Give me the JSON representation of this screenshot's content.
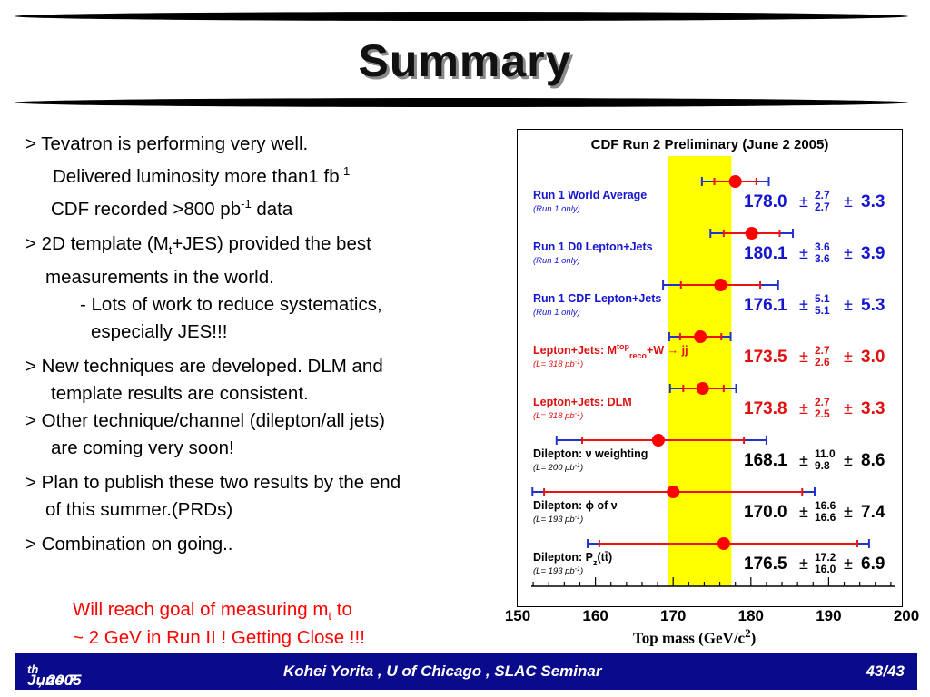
{
  "slide": {
    "title": "Summary",
    "bullets": {
      "b1": "> Tevatron is performing very well.",
      "b1a_pre": "Delivered luminosity more than1 fb",
      "b1a_sup": "-1",
      "b1b_pre": "CDF recorded >800 pb",
      "b1b_sup": "-1",
      "b1b_post": " data",
      "b2_pre": "> 2D template (M",
      "b2_sub": "t",
      "b2_post": "+JES) provided the best",
      "b2a": "measurements in the world.",
      "b2b": "- Lots of work to reduce systematics,",
      "b2c": "especially JES!!!",
      "b3": "> New techniques are developed. DLM and",
      "b3a": "template results are consistent.",
      "b4": "> Other technique/channel (dilepton/all jets)",
      "b4a": "are coming very soon!",
      "b5": "> Plan to publish these two results by the end",
      "b5a": "of this summer.(PRDs)",
      "b6": "> Combination on going.."
    },
    "goal": {
      "line1_pre": "Will reach goal of measuring m",
      "line1_sub": "t",
      "line1_post": " to",
      "line2": "~ 2 GeV in Run II ! Getting Close !!!"
    },
    "footer": {
      "date_pre": "June 7",
      "date_sup": "th",
      "date_post": " , 2005",
      "center": "Kohei Yorita , U of Chicago , SLAC Seminar",
      "page": "43/43"
    }
  },
  "chart_data": {
    "type": "scatter",
    "title": "CDF Run 2 Preliminary (June 2 2005)",
    "xlabel_pre": "Top mass (GeV/c",
    "xlabel_sup": "2",
    "xlabel_post": ")",
    "xlim": [
      150,
      200
    ],
    "xticks": [
      "150",
      "160",
      "170",
      "180",
      "190",
      "200"
    ],
    "band": [
      169.3,
      177.5
    ],
    "band_color": "#ffff00",
    "measurements": [
      {
        "label": "Run 1 World Average",
        "sublabel": "(Run 1 only)",
        "value": 178.0,
        "value_text": "178.0",
        "stat_up": "2.7",
        "stat_down": "2.7",
        "syst": "3.3",
        "color": "#1515d0",
        "err_inner": [
          175.3,
          180.7
        ],
        "err_outer": [
          173.7,
          182.3
        ]
      },
      {
        "label": "Run 1 D0 Lepton+Jets",
        "sublabel": "(Run 1 only)",
        "value": 180.1,
        "value_text": "180.1",
        "stat_up": "3.6",
        "stat_down": "3.6",
        "syst": "3.9",
        "color": "#1515d0",
        "err_inner": [
          176.5,
          183.7
        ],
        "err_outer": [
          174.8,
          185.4
        ]
      },
      {
        "label": "Run 1 CDF Lepton+Jets",
        "sublabel": "(Run 1 only)",
        "value": 176.1,
        "value_text": "176.1",
        "stat_up": "5.1",
        "stat_down": "5.1",
        "syst": "5.3",
        "color": "#1515d0",
        "err_inner": [
          171.0,
          181.2
        ],
        "err_outer": [
          168.7,
          183.5
        ]
      },
      {
        "label": "Lepton+Jets: M",
        "label_sup": "top",
        "label_sub": "reco",
        "label_post": "+W → jj",
        "sublabel": "(L= 318 pb",
        "sublabel_sup": "-1",
        "sublabel_post": ")",
        "value": 173.5,
        "value_text": "173.5",
        "stat_up": "2.7",
        "stat_down": "2.6",
        "syst": "3.0",
        "color": "#e01010",
        "err_inner": [
          170.9,
          176.2
        ],
        "err_outer": [
          169.5,
          177.4
        ]
      },
      {
        "label": "Lepton+Jets: DLM",
        "sublabel": "(L= 318 pb",
        "sublabel_sup": "-1",
        "sublabel_post": ")",
        "value": 173.8,
        "value_text": "173.8",
        "stat_up": "2.7",
        "stat_down": "2.5",
        "syst": "3.3",
        "color": "#e01010",
        "err_inner": [
          171.3,
          176.5
        ],
        "err_outer": [
          169.6,
          178.1
        ]
      },
      {
        "label": "Dilepton: ν weighting",
        "sublabel": "(L= 200 pb",
        "sublabel_sup": "-1",
        "sublabel_post": ")",
        "value": 168.1,
        "value_text": "168.1",
        "stat_up": "11.0",
        "stat_down": "9.8",
        "syst": "8.6",
        "color": "#000000",
        "err_inner": [
          158.3,
          179.1
        ],
        "err_outer": [
          155.0,
          182.0
        ]
      },
      {
        "label": "Dilepton: ϕ of ν",
        "sublabel": "(L= 193 pb",
        "sublabel_sup": "-1",
        "sublabel_post": ")",
        "value": 170.0,
        "value_text": "170.0",
        "stat_up": "16.6",
        "stat_down": "16.6",
        "syst": "7.4",
        "color": "#000000",
        "err_inner": [
          153.4,
          186.6
        ],
        "err_outer": [
          151.9,
          188.2
        ]
      },
      {
        "label": "Dilepton: P",
        "label_sub": "z",
        "label_post": "(tt̄)",
        "sublabel": "(L= 193 pb",
        "sublabel_sup": "-1",
        "sublabel_post": ")",
        "value": 176.5,
        "value_text": "176.5",
        "stat_up": "17.2",
        "stat_down": "16.0",
        "syst": "6.9",
        "color": "#000000",
        "err_inner": [
          160.5,
          193.7
        ],
        "err_outer": [
          159.0,
          195.2
        ]
      }
    ],
    "point_color": "#ff0000",
    "inner_bar_color": "#ee1111",
    "outer_bar_color": "#2233cc",
    "grid": false
  }
}
